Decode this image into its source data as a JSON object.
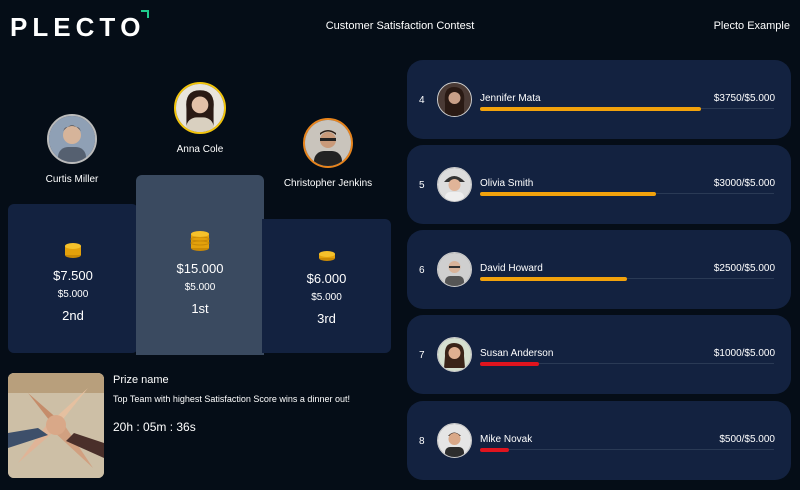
{
  "header": {
    "logo": "PLECT",
    "logo_end": "O",
    "title": "Customer Satisfaction Contest",
    "account": "Plecto Example"
  },
  "podium": [
    {
      "place": "2nd",
      "name": "Curtis Miller",
      "amount": "$7.500",
      "target": "$5.000"
    },
    {
      "place": "1st",
      "name": "Anna Cole",
      "amount": "$15.000",
      "target": "$5.000"
    },
    {
      "place": "3rd",
      "name": "Christopher Jenkins",
      "amount": "$6.000",
      "target": "$5.000"
    }
  ],
  "prize": {
    "title": "Prize name",
    "description": "Top Team with highest Satisfaction Score wins a dinner out!",
    "timer": "20h : 05m : 36s"
  },
  "leaderboard": [
    {
      "rank": "4",
      "name": "Jennifer Mata",
      "value": "$3750/$5.000",
      "progress": 0.75,
      "color": "#f2a20c"
    },
    {
      "rank": "5",
      "name": "Olivia Smith",
      "value": "$3000/$5.000",
      "progress": 0.6,
      "color": "#f2a20c"
    },
    {
      "rank": "6",
      "name": "David Howard",
      "value": "$2500/$5.000",
      "progress": 0.5,
      "color": "#f2a20c"
    },
    {
      "rank": "7",
      "name": "Susan Anderson",
      "value": "$1000/$5.000",
      "progress": 0.2,
      "color": "#e0141e"
    },
    {
      "rank": "8",
      "name": "Mike Novak",
      "value": "$500/$5.000",
      "progress": 0.1,
      "color": "#e0141e"
    }
  ],
  "colors": {
    "background": "#050d17",
    "card": "#132240",
    "first_place": "#3a4a60",
    "gold": "#f2a20c",
    "red": "#e0141e",
    "logo_accent": "#1ecb8c"
  }
}
